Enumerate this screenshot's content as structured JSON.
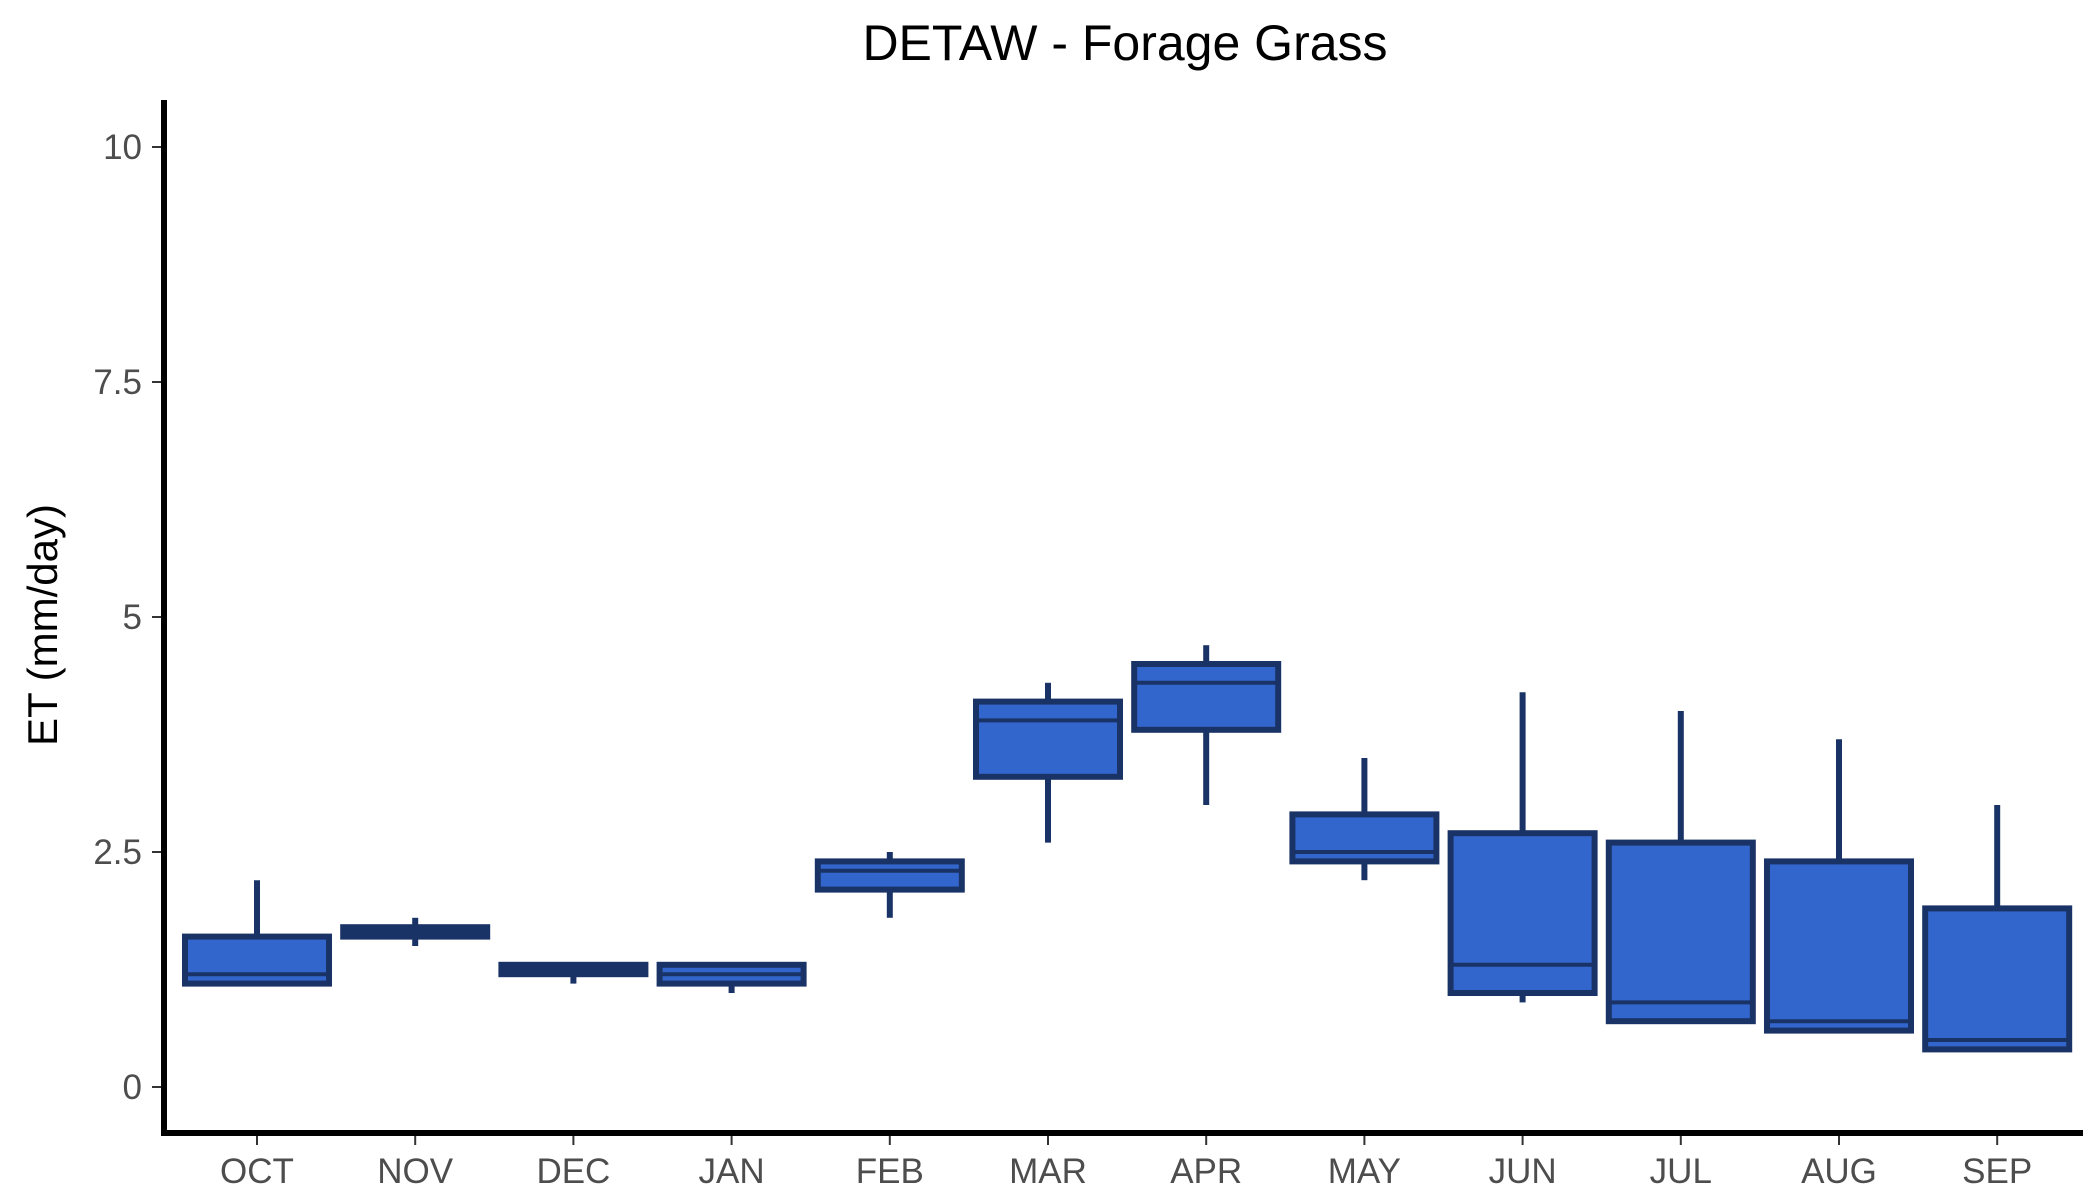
{
  "chart_data": {
    "type": "boxplot",
    "title": "DETAW - Forage Grass",
    "xlabel": "",
    "ylabel": "ET (mm/day)",
    "ylim": [
      -0.5,
      10.5
    ],
    "yticks": [
      0,
      2.5,
      5,
      7.5,
      10
    ],
    "ytick_labels": [
      "0",
      "2.5",
      "5",
      "7.5",
      "10"
    ],
    "categories": [
      "OCT",
      "NOV",
      "DEC",
      "JAN",
      "FEB",
      "MAR",
      "APR",
      "MAY",
      "JUN",
      "JUL",
      "AUG",
      "SEP"
    ],
    "boxes": [
      {
        "min": 1.1,
        "q1": 1.1,
        "median": 1.2,
        "q3": 1.6,
        "max": 2.2
      },
      {
        "min": 1.5,
        "q1": 1.6,
        "median": 1.65,
        "q3": 1.7,
        "max": 1.8
      },
      {
        "min": 1.1,
        "q1": 1.2,
        "median": 1.25,
        "q3": 1.3,
        "max": 1.3
      },
      {
        "min": 1.0,
        "q1": 1.1,
        "median": 1.2,
        "q3": 1.3,
        "max": 1.3
      },
      {
        "min": 1.8,
        "q1": 2.1,
        "median": 2.3,
        "q3": 2.4,
        "max": 2.5
      },
      {
        "min": 2.6,
        "q1": 3.3,
        "median": 3.9,
        "q3": 4.1,
        "max": 4.3
      },
      {
        "min": 3.0,
        "q1": 3.8,
        "median": 4.3,
        "q3": 4.5,
        "max": 4.7
      },
      {
        "min": 2.2,
        "q1": 2.4,
        "median": 2.5,
        "q3": 2.9,
        "max": 3.5
      },
      {
        "min": 0.9,
        "q1": 1.0,
        "median": 1.3,
        "q3": 2.7,
        "max": 4.2
      },
      {
        "min": 0.7,
        "q1": 0.7,
        "median": 0.9,
        "q3": 2.6,
        "max": 4.0
      },
      {
        "min": 0.6,
        "q1": 0.6,
        "median": 0.7,
        "q3": 2.4,
        "max": 3.7
      },
      {
        "min": 0.4,
        "q1": 0.4,
        "median": 0.5,
        "q3": 1.9,
        "max": 3.0
      }
    ],
    "box_fill": "#3366cc",
    "box_stroke": "#1a3366",
    "grid": false,
    "legend": "none"
  }
}
